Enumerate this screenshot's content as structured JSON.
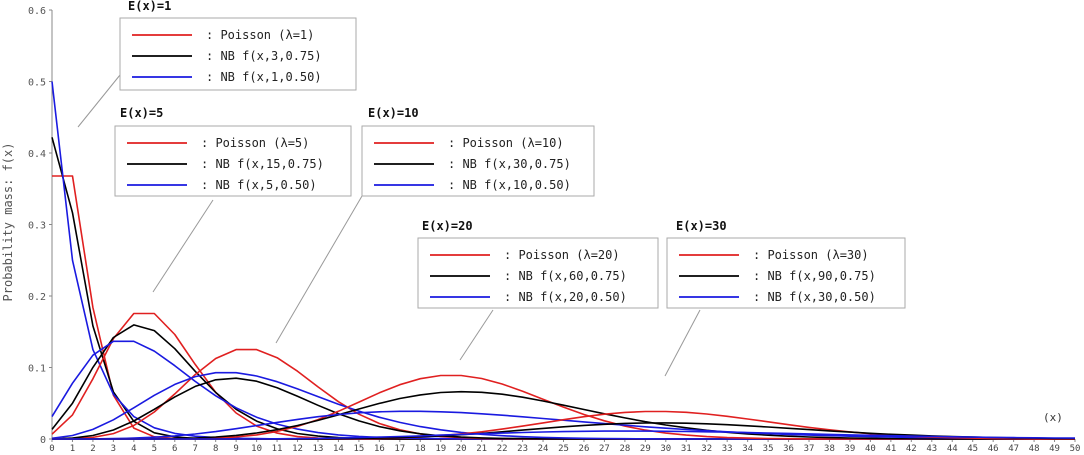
{
  "chart_data": {
    "type": "line",
    "title": "",
    "xlabel": "(x)",
    "ylabel": "Probability mass: f(x)",
    "xlim": [
      0,
      50
    ],
    "ylim": [
      0,
      0.6
    ],
    "x_ticks": [
      0,
      1,
      2,
      3,
      4,
      5,
      6,
      7,
      8,
      9,
      10,
      11,
      12,
      13,
      14,
      15,
      16,
      17,
      18,
      19,
      20,
      21,
      22,
      23,
      24,
      25,
      26,
      27,
      28,
      29,
      30,
      31,
      32,
      33,
      34,
      35,
      36,
      37,
      38,
      39,
      40,
      41,
      42,
      43,
      44,
      45,
      46,
      47,
      48,
      49,
      50
    ],
    "y_ticks": [
      0,
      0.1,
      0.2,
      0.3,
      0.4,
      0.5,
      0.6
    ],
    "grid": false,
    "x": [
      0,
      1,
      2,
      3,
      4,
      5,
      6,
      7,
      8,
      9,
      10,
      11,
      12,
      13,
      14,
      15,
      16,
      17,
      18,
      19,
      20,
      21,
      22,
      23,
      24,
      25,
      26,
      27,
      28,
      29,
      30,
      31,
      32,
      33,
      34,
      35,
      36,
      37,
      38,
      39,
      40,
      41,
      42,
      43,
      44,
      45,
      46,
      47,
      48,
      49,
      50
    ],
    "colors": {
      "poisson": "#e02020",
      "nb75": "#000000",
      "nb50": "#1a1ae0",
      "leader": "#999999",
      "box_border": "#aaaaaa"
    },
    "groups": [
      {
        "title": "E(x)=1",
        "series": [
          {
            "name": ": Poisson (λ=1)",
            "color_key": "poisson",
            "values": [
              0.3679,
              0.3679,
              0.1839,
              0.0613,
              0.0153,
              0.0031,
              0.0005,
              0.0001,
              0,
              0,
              0,
              0,
              0,
              0,
              0,
              0,
              0,
              0,
              0,
              0,
              0,
              0,
              0,
              0,
              0,
              0,
              0,
              0,
              0,
              0,
              0,
              0,
              0,
              0,
              0,
              0,
              0,
              0,
              0,
              0,
              0,
              0,
              0,
              0,
              0,
              0,
              0,
              0,
              0,
              0,
              0
            ]
          },
          {
            "name": ": NB f(x,3,0.75)",
            "color_key": "nb75",
            "values": [
              0.4219,
              0.3164,
              0.1582,
              0.0659,
              0.0247,
              0.0087,
              0.0029,
              0.0009,
              0.0003,
              0.0001,
              0,
              0,
              0,
              0,
              0,
              0,
              0,
              0,
              0,
              0,
              0,
              0,
              0,
              0,
              0,
              0,
              0,
              0,
              0,
              0,
              0,
              0,
              0,
              0,
              0,
              0,
              0,
              0,
              0,
              0,
              0,
              0,
              0,
              0,
              0,
              0,
              0,
              0,
              0,
              0,
              0
            ]
          },
          {
            "name": ": NB f(x,1,0.50)",
            "color_key": "nb50",
            "values": [
              0.5,
              0.25,
              0.125,
              0.0625,
              0.0313,
              0.0156,
              0.0078,
              0.0039,
              0.002,
              0.001,
              0.0005,
              0.0002,
              0.0001,
              0.0001,
              0,
              0,
              0,
              0,
              0,
              0,
              0,
              0,
              0,
              0,
              0,
              0,
              0,
              0,
              0,
              0,
              0,
              0,
              0,
              0,
              0,
              0,
              0,
              0,
              0,
              0,
              0,
              0,
              0,
              0,
              0,
              0,
              0,
              0,
              0,
              0,
              0
            ]
          }
        ]
      },
      {
        "title": "E(x)=5",
        "series": [
          {
            "name": ": Poisson (λ=5)",
            "color_key": "poisson",
            "values": [
              0.0067,
              0.0337,
              0.0842,
              0.1404,
              0.1755,
              0.1755,
              0.1462,
              0.1044,
              0.0653,
              0.0363,
              0.0181,
              0.0082,
              0.0034,
              0.0013,
              0.0005,
              0.0002,
              0,
              0,
              0,
              0,
              0,
              0,
              0,
              0,
              0,
              0,
              0,
              0,
              0,
              0,
              0,
              0,
              0,
              0,
              0,
              0,
              0,
              0,
              0,
              0,
              0,
              0,
              0,
              0,
              0,
              0,
              0,
              0,
              0,
              0,
              0
            ]
          },
          {
            "name": ": NB f(x,15,0.75)",
            "color_key": "nb75",
            "values": [
              0.0134,
              0.0501,
              0.1002,
              0.1419,
              0.1596,
              0.1516,
              0.1263,
              0.0947,
              0.0651,
              0.0416,
              0.025,
              0.0142,
              0.0077,
              0.004,
              0.002,
              0.0009,
              0.0004,
              0.0002,
              0.0001,
              0,
              0,
              0,
              0,
              0,
              0,
              0,
              0,
              0,
              0,
              0,
              0,
              0,
              0,
              0,
              0,
              0,
              0,
              0,
              0,
              0,
              0,
              0,
              0,
              0,
              0,
              0,
              0,
              0,
              0,
              0,
              0
            ]
          },
          {
            "name": ": NB f(x,5,0.50)",
            "color_key": "nb50",
            "values": [
              0.0313,
              0.0781,
              0.1172,
              0.1367,
              0.1367,
              0.123,
              0.1025,
              0.0806,
              0.0604,
              0.0436,
              0.0305,
              0.0208,
              0.0138,
              0.009,
              0.0058,
              0.0037,
              0.0023,
              0.0014,
              0.0009,
              0.0005,
              0.0003,
              0.0002,
              0.0001,
              0.0001,
              0,
              0,
              0,
              0,
              0,
              0,
              0,
              0,
              0,
              0,
              0,
              0,
              0,
              0,
              0,
              0,
              0,
              0,
              0,
              0,
              0,
              0,
              0,
              0,
              0,
              0,
              0
            ]
          }
        ]
      },
      {
        "title": "E(x)=10",
        "series": [
          {
            "name": ": Poisson (λ=10)",
            "color_key": "poisson",
            "values": [
              0.0,
              0.0005,
              0.0023,
              0.0076,
              0.0189,
              0.0378,
              0.0631,
              0.0901,
              0.1126,
              0.1251,
              0.1251,
              0.1137,
              0.0948,
              0.0729,
              0.0521,
              0.0347,
              0.0217,
              0.0128,
              0.0071,
              0.0037,
              0.0019,
              0.0009,
              0.0004,
              0.0002,
              0.0001,
              0,
              0,
              0,
              0,
              0,
              0,
              0,
              0,
              0,
              0,
              0,
              0,
              0,
              0,
              0,
              0,
              0,
              0,
              0,
              0,
              0,
              0,
              0,
              0,
              0,
              0
            ]
          },
          {
            "name": ": NB f(x,30,0.75)",
            "color_key": "nb75",
            "values": [
              0.0002,
              0.0013,
              0.0049,
              0.0126,
              0.0252,
              0.0416,
              0.0589,
              0.0736,
              0.0828,
              0.0851,
              0.0808,
              0.0716,
              0.0597,
              0.0471,
              0.0353,
              0.0253,
              0.0174,
              0.0115,
              0.0073,
              0.0045,
              0.0027,
              0.0016,
              0.0009,
              0.0005,
              0.0003,
              0.0001,
              0.0001,
              0,
              0,
              0,
              0,
              0,
              0,
              0,
              0,
              0,
              0,
              0,
              0,
              0,
              0,
              0,
              0,
              0,
              0,
              0,
              0,
              0,
              0,
              0,
              0
            ]
          },
          {
            "name": ": NB f(x,10,0.50)",
            "color_key": "nb50",
            "values": [
              0.001,
              0.0049,
              0.0134,
              0.0269,
              0.0436,
              0.0611,
              0.0764,
              0.0873,
              0.0927,
              0.0927,
              0.0881,
              0.0801,
              0.0701,
              0.0593,
              0.0487,
              0.039,
              0.0304,
              0.0232,
              0.0174,
              0.0128,
              0.0093,
              0.0066,
              0.0046,
              0.0032,
              0.0022,
              0.0015,
              0.001,
              0.0007,
              0.0004,
              0.0003,
              0.0002,
              0.0001,
              0.0001,
              0,
              0,
              0,
              0,
              0,
              0,
              0,
              0,
              0,
              0,
              0,
              0,
              0,
              0,
              0,
              0,
              0,
              0
            ]
          }
        ]
      },
      {
        "title": "E(x)=20",
        "series": [
          {
            "name": ": Poisson (λ=20)",
            "color_key": "poisson",
            "values": [
              0,
              0,
              0,
              0,
              0,
              0.0001,
              0.0002,
              0.0005,
              0.0013,
              0.0029,
              0.0058,
              0.0106,
              0.0176,
              0.0271,
              0.0387,
              0.0516,
              0.0646,
              0.076,
              0.0844,
              0.0888,
              0.0888,
              0.0846,
              0.0769,
              0.0669,
              0.0557,
              0.0446,
              0.0343,
              0.0254,
              0.0181,
              0.0125,
              0.0083,
              0.0054,
              0.0034,
              0.002,
              0.0012,
              0.0007,
              0.0004,
              0.0002,
              0.0001,
              0.0001,
              0,
              0,
              0,
              0,
              0,
              0,
              0,
              0,
              0,
              0,
              0
            ]
          },
          {
            "name": ": NB f(x,60,0.75)",
            "color_key": "nb75",
            "values": [
              0,
              0,
              0,
              0,
              0.0001,
              0.0002,
              0.0006,
              0.0014,
              0.0028,
              0.005,
              0.0084,
              0.013,
              0.0189,
              0.026,
              0.0339,
              0.042,
              0.0498,
              0.0566,
              0.0617,
              0.065,
              0.0661,
              0.0653,
              0.0626,
              0.0585,
              0.0532,
              0.0473,
              0.0412,
              0.0352,
              0.0295,
              0.0242,
              0.0196,
              0.0156,
              0.0122,
              0.0094,
              0.0071,
              0.0053,
              0.0039,
              0.0028,
              0.002,
              0.0014,
              0.001,
              0.0007,
              0.0005,
              0.0003,
              0.0002,
              0.0001,
              0.0001,
              0,
              0,
              0,
              0
            ]
          },
          {
            "name": ": NB f(x,20,0.50)",
            "color_key": "nb50",
            "values": [
              0,
              0,
              0.0002,
              0.0006,
              0.0013,
              0.0025,
              0.0044,
              0.007,
              0.0104,
              0.0144,
              0.0187,
              0.0232,
              0.0274,
              0.0312,
              0.0343,
              0.0366,
              0.0381,
              0.0388,
              0.0388,
              0.0381,
              0.0369,
              0.0352,
              0.0333,
              0.0311,
              0.0287,
              0.0263,
              0.0239,
              0.0215,
              0.0193,
              0.0171,
              0.0151,
              0.0133,
              0.0116,
              0.0101,
              0.0087,
              0.0075,
              0.0064,
              0.0055,
              0.0047,
              0.0039,
              0.0033,
              0.0028,
              0.0023,
              0.0019,
              0.0016,
              0.0013,
              0.0011,
              0.0009,
              0.0007,
              0.0006,
              0.0005
            ]
          }
        ]
      },
      {
        "title": "E(x)=30",
        "series": [
          {
            "name": ": Poisson (λ=30)",
            "color_key": "poisson",
            "values": [
              0,
              0,
              0,
              0,
              0,
              0,
              0,
              0,
              0,
              0,
              0,
              0,
              0,
              0.0001,
              0.0002,
              0.0006,
              0.001,
              0.0018,
              0.003,
              0.0047,
              0.0071,
              0.0101,
              0.0138,
              0.018,
              0.0225,
              0.027,
              0.0312,
              0.0347,
              0.0372,
              0.0385,
              0.0385,
              0.0373,
              0.0349,
              0.0317,
              0.028,
              0.024,
              0.02,
              0.0162,
              0.0128,
              0.0099,
              0.0074,
              0.0054,
              0.0039,
              0.0027,
              0.0019,
              0.0013,
              0.0008,
              0.0005,
              0.0003,
              0.0002,
              0.0001
            ]
          },
          {
            "name": ": NB f(x,90,0.75)",
            "color_key": "nb75",
            "values": [
              0,
              0,
              0,
              0,
              0,
              0,
              0,
              0,
              0,
              0,
              0,
              0,
              0.0001,
              0.0002,
              0.0004,
              0.0008,
              0.0013,
              0.0021,
              0.0031,
              0.0044,
              0.006,
              0.0079,
              0.0101,
              0.0124,
              0.0148,
              0.017,
              0.019,
              0.0206,
              0.0218,
              0.0224,
              0.0225,
              0.0221,
              0.0212,
              0.02,
              0.0185,
              0.0168,
              0.0149,
              0.0131,
              0.0113,
              0.0096,
              0.008,
              0.0066,
              0.0054,
              0.0043,
              0.0034,
              0.0027,
              0.0021,
              0.0016,
              0.0012,
              0.0009,
              0.0007
            ]
          },
          {
            "name": ": NB f(x,30,0.50)",
            "color_key": "nb50",
            "values": [
              0,
              0,
              0,
              0,
              0,
              0,
              0,
              0,
              0,
              0.0001,
              0.0002,
              0.0003,
              0.0006,
              0.0009,
              0.0014,
              0.002,
              0.0027,
              0.0035,
              0.0044,
              0.0054,
              0.0064,
              0.0074,
              0.0083,
              0.0091,
              0.0098,
              0.0104,
              0.0108,
              0.011,
              0.0111,
              0.011,
              0.0108,
              0.0105,
              0.0101,
              0.0096,
              0.009,
              0.0084,
              0.0078,
              0.0071,
              0.0065,
              0.0058,
              0.0052,
              0.0046,
              0.0041,
              0.0036,
              0.0031,
              0.0027,
              0.0023,
              0.002,
              0.0017,
              0.0014,
              0.0012
            ]
          }
        ]
      }
    ]
  }
}
